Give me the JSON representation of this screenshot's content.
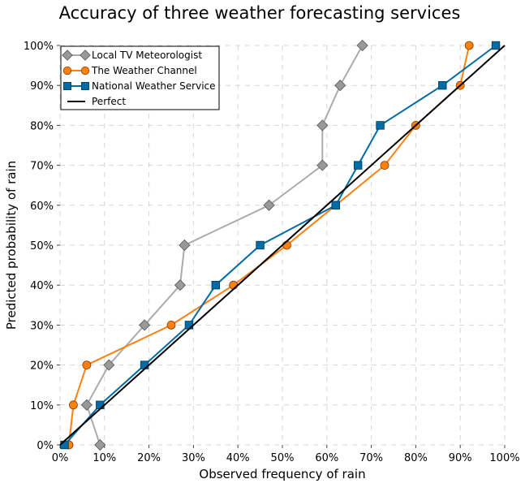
{
  "chart_data": {
    "type": "line",
    "title": "Accuracy of three weather forecasting services",
    "xlabel": "Observed frequency of rain",
    "ylabel": "Predicted probability of rain",
    "xlim": [
      0,
      100
    ],
    "ylim": [
      0,
      100
    ],
    "xticks": [
      0,
      10,
      20,
      30,
      40,
      50,
      60,
      70,
      80,
      90,
      100
    ],
    "yticks": [
      0,
      10,
      20,
      30,
      40,
      50,
      60,
      70,
      80,
      90,
      100
    ],
    "xtick_labels": [
      "0%",
      "10%",
      "20%",
      "30%",
      "40%",
      "50%",
      "60%",
      "70%",
      "80%",
      "90%",
      "100%"
    ],
    "ytick_labels": [
      "0%",
      "10%",
      "20%",
      "30%",
      "40%",
      "50%",
      "60%",
      "70%",
      "80%",
      "90%",
      "100%"
    ],
    "grid": true,
    "legend_position": "top-left",
    "series": [
      {
        "name": "Local TV Meteorologist",
        "color": "#ababab",
        "marker_color": "#999999",
        "marker": "diamond",
        "x": [
          9,
          6,
          11,
          19,
          27,
          28,
          47,
          59,
          59,
          63,
          68
        ],
        "y": [
          0,
          10,
          20,
          30,
          40,
          50,
          60,
          70,
          80,
          90,
          100
        ]
      },
      {
        "name": "The Weather Channel",
        "color": "#ff800e",
        "marker_color": "#ff800e",
        "marker": "circle",
        "x": [
          2,
          3,
          6,
          25,
          39,
          51,
          62,
          73,
          80,
          90,
          92
        ],
        "y": [
          0,
          10,
          20,
          30,
          40,
          50,
          60,
          70,
          80,
          90,
          100
        ]
      },
      {
        "name": "National Weather Service",
        "color": "#006ba4",
        "marker_color": "#006ba4",
        "marker": "square",
        "x": [
          1,
          9,
          19,
          29,
          35,
          45,
          62,
          67,
          72,
          86,
          98
        ],
        "y": [
          0,
          10,
          20,
          30,
          40,
          50,
          60,
          70,
          80,
          90,
          100
        ]
      },
      {
        "name": "Perfect",
        "color": "#000000",
        "marker": "none",
        "x": [
          0,
          100
        ],
        "y": [
          0,
          100
        ]
      }
    ]
  }
}
